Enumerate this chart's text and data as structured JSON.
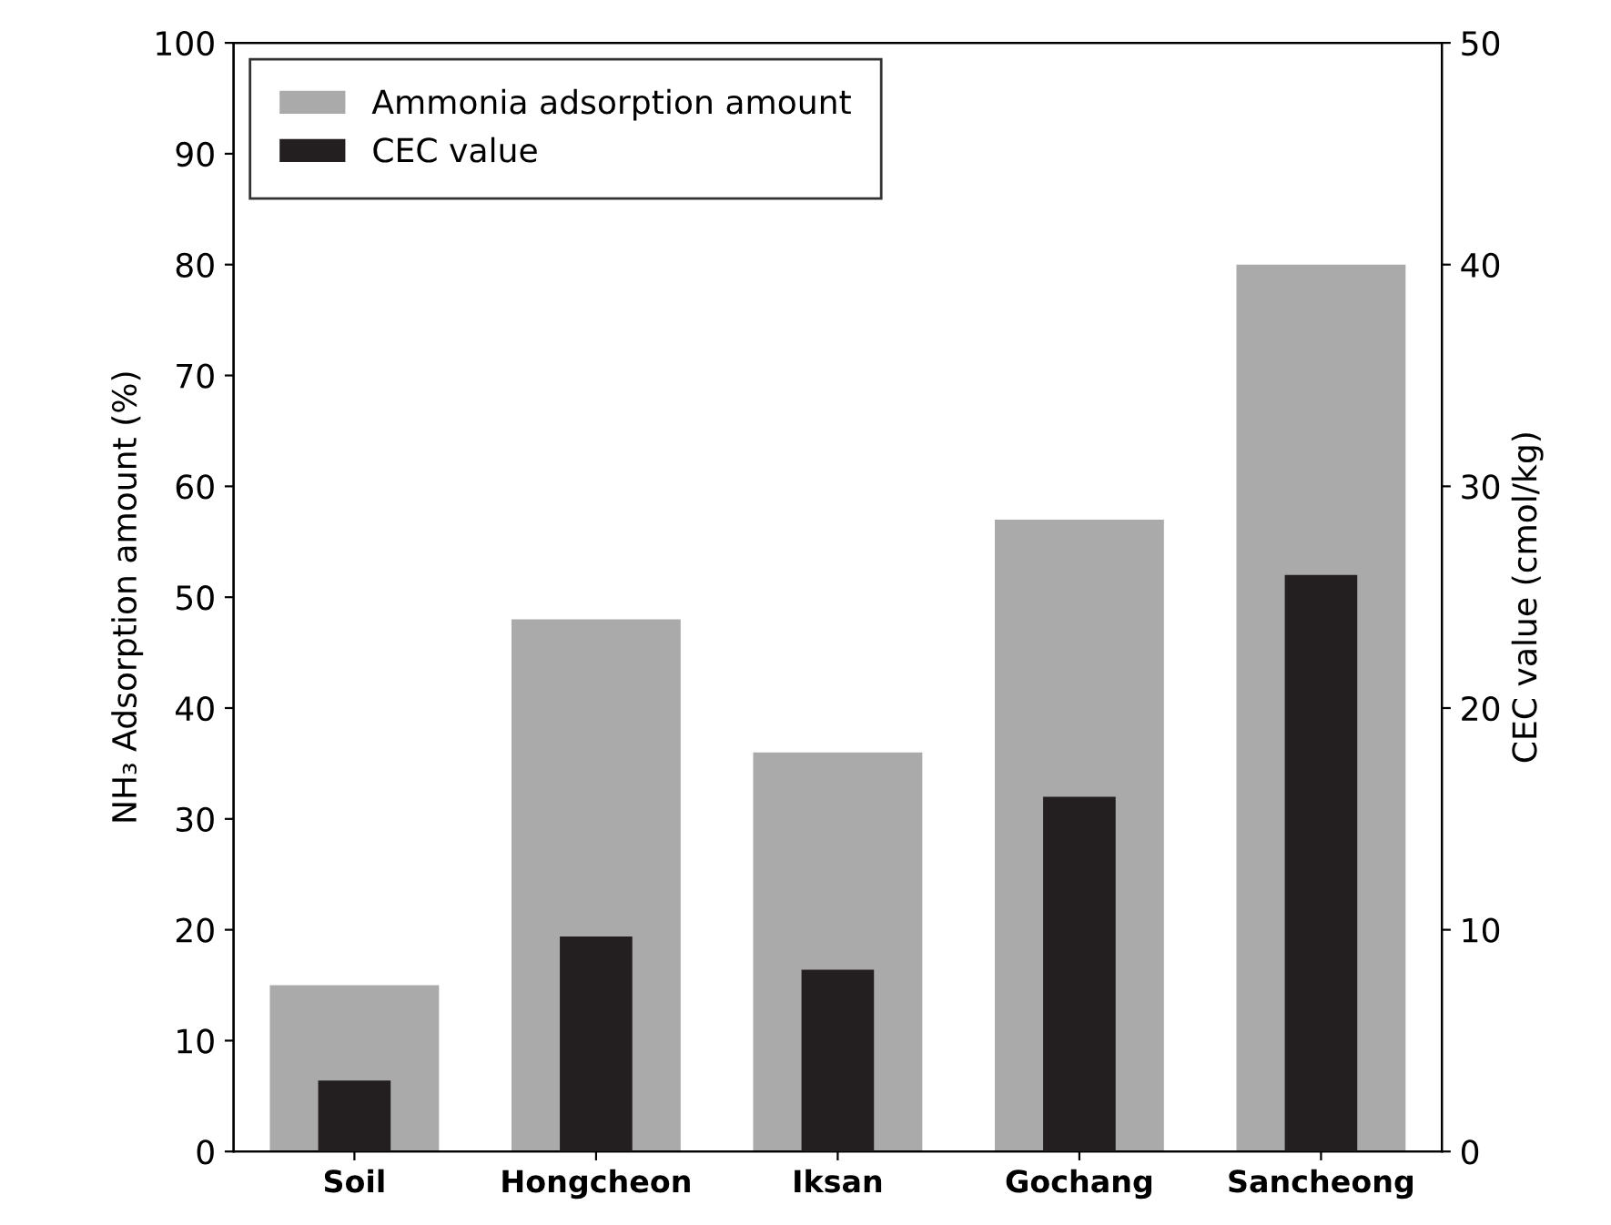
{
  "chart_data": {
    "type": "bar",
    "categories": [
      "Soil",
      "Hongcheon",
      "Iksan",
      "Gochang",
      "Sancheong"
    ],
    "series": [
      {
        "name": "Ammonia adsorption amount",
        "color": "#aaaaaa",
        "values": [
          15,
          48,
          36,
          57,
          80
        ]
      },
      {
        "name": "CEC value",
        "color": "#231f20",
        "values": [
          3.2,
          9.7,
          8.2,
          16,
          26
        ],
        "axis": "y2"
      }
    ],
    "ylabel": "NH₃ Adsorption amount (%)",
    "y2label": "CEC value (cmol/kg)",
    "ylim": [
      0,
      100
    ],
    "yticks": [
      0,
      10,
      20,
      30,
      40,
      50,
      60,
      70,
      80,
      90,
      100
    ],
    "y2lim": [
      0,
      50
    ],
    "y2ticks": [
      0,
      10,
      20,
      30,
      40,
      50
    ],
    "legend": "top left",
    "grid": false
  }
}
